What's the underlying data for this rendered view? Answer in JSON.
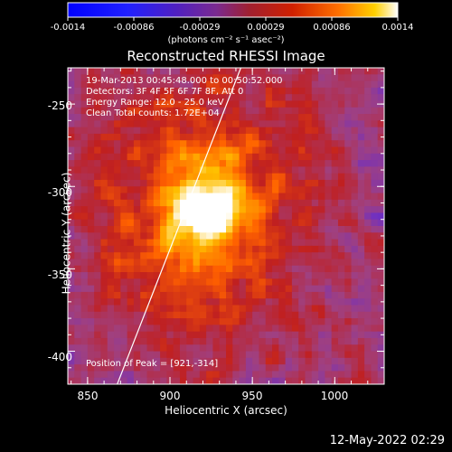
{
  "colorbar": {
    "ticks": [
      "-0.0014",
      "-0.00086",
      "-0.00029",
      "0.00029",
      "0.00086",
      "0.0014"
    ],
    "unit_label": "(photons cm⁻² s⁻¹ asec⁻²)",
    "range": [
      -0.0014,
      0.0014
    ]
  },
  "title": "Reconstructed RHESSI Image",
  "info": {
    "time": "19-Mar-2013 00:45:48.000 to 00:50:52.000",
    "detectors": "Detectors: 3F 4F 5F 6F 7F 8F, Att 0",
    "energy": "Energy Range: 12.0 - 25.0 keV",
    "method": "Clean     Total counts: 1.72E+04",
    "peak": "Position of Peak = [921,-314]"
  },
  "timestamp": "12-May-2022 02:29",
  "chart_data": {
    "type": "heatmap",
    "title": "Reconstructed RHESSI Image",
    "xlabel": "Heliocentric X (arcsec)",
    "ylabel": "Heliocentric Y (arcsec)",
    "xlim": [
      838,
      1030
    ],
    "ylim": [
      -420,
      -228
    ],
    "xticks": [
      "850",
      "900",
      "950",
      "1000"
    ],
    "yticks": [
      "-250",
      "-300",
      "-350",
      "-400"
    ],
    "peak": {
      "x": 921,
      "y": -314
    },
    "limb_line": {
      "x": [
        868,
        943
      ],
      "y": [
        -420,
        -228
      ]
    },
    "value_range": [
      -0.0014,
      0.0014
    ],
    "colormap": [
      "#0000ff",
      "#7030c0",
      "#a04080",
      "#c02020",
      "#ff6000",
      "#ffc000",
      "#ffffff"
    ]
  }
}
